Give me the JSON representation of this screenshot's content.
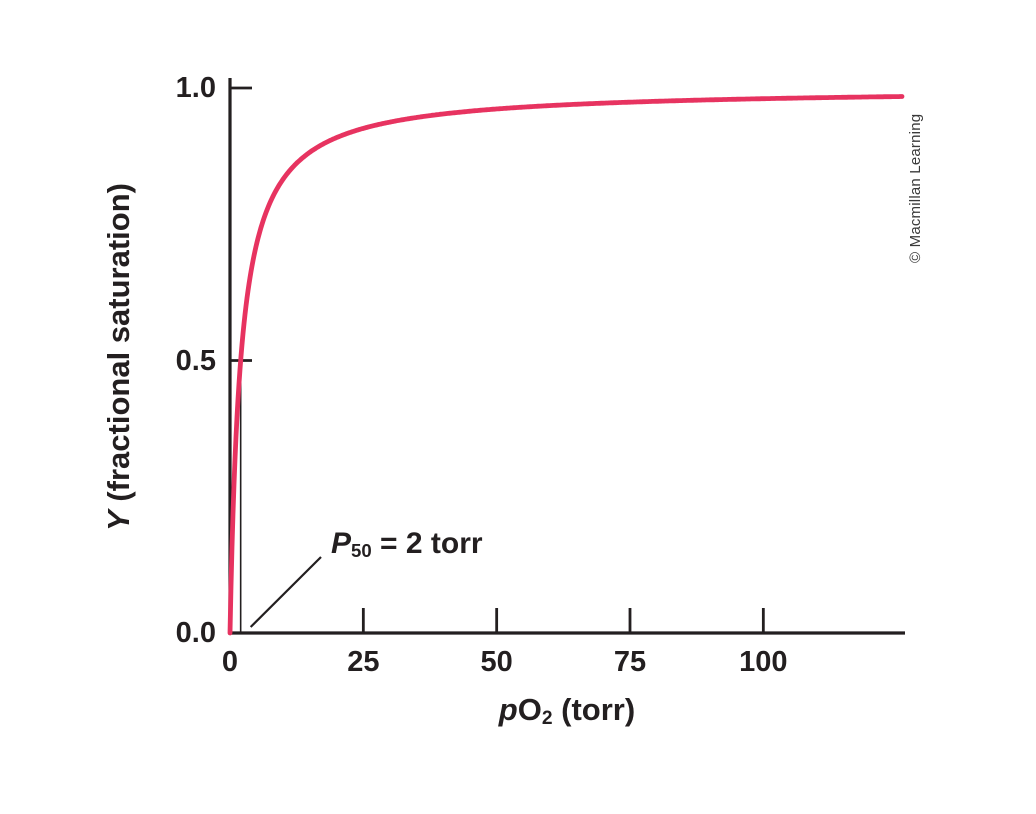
{
  "figure": {
    "copyright": "© Macmillan Learning"
  },
  "chart_data": {
    "type": "line",
    "title": "",
    "xlabel": "pO2 (torr)",
    "xlabel_parts": {
      "p": "p",
      "O": "O",
      "sub": "2",
      "rest": " (torr)"
    },
    "ylabel": "Y (fractional saturation)",
    "ylabel_parts": {
      "Y": "Y",
      "rest": " (fractional saturation)"
    },
    "xlim": [
      0,
      126
    ],
    "ylim": [
      0,
      1.0
    ],
    "x_ticks": [
      0,
      25,
      50,
      75,
      100
    ],
    "x_tick_labels": [
      "0",
      "25",
      "50",
      "75",
      "100"
    ],
    "y_ticks": [
      0,
      0.5,
      1.0
    ],
    "y_tick_labels": [
      "0.0",
      "0.5",
      "1.0"
    ],
    "grid": false,
    "legend": "none",
    "line_color": "#e73360",
    "axis_color": "#231f20",
    "series": [
      {
        "name": "fractional saturation curve",
        "shape": "hyperbolic",
        "P50_torr": 2,
        "x": [
          0,
          0.5,
          1,
          2,
          3,
          4,
          5,
          7,
          10,
          15,
          20,
          30,
          40,
          50,
          75,
          100,
          125
        ],
        "y": [
          0,
          0.2,
          0.333,
          0.5,
          0.6,
          0.667,
          0.714,
          0.778,
          0.833,
          0.882,
          0.909,
          0.938,
          0.952,
          0.962,
          0.974,
          0.98,
          0.984
        ]
      }
    ],
    "annotations": [
      {
        "id": "p50",
        "text": "P50 = 2 torr",
        "text_parts": {
          "P": "P",
          "sub": "50",
          "rest": " = 2 torr"
        },
        "marker_x": 2,
        "marker_y": 0.5
      }
    ]
  }
}
